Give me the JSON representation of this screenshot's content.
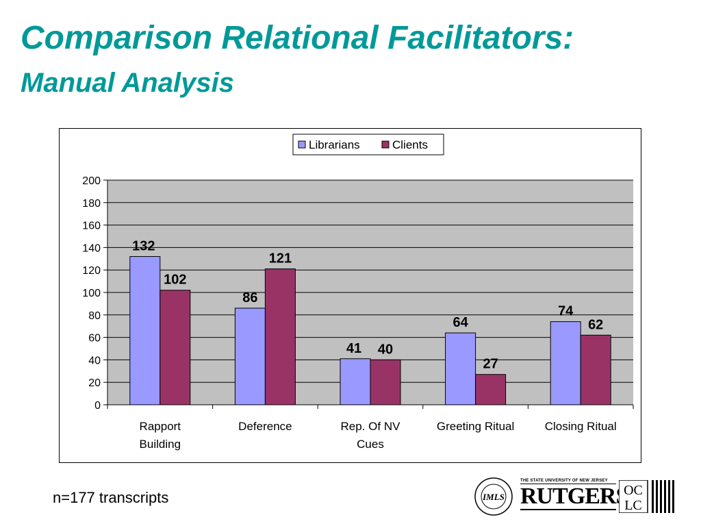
{
  "slide": {
    "title_line1": "Comparison Relational Facilitators:",
    "title_line2": "Manual Analysis",
    "footnote": "n=177 transcripts"
  },
  "logos": {
    "seal_text": "INSTITUTE of MUSEUM and LIBRARY SERVICES",
    "seal_monogram": "IMLS",
    "rutgers_small": "THE STATE UNIVERSITY OF NEW JERSEY",
    "rutgers_big": "RUTGERS",
    "oclc_top": "OC",
    "oclc_bottom": "LC"
  },
  "chart_data": {
    "type": "bar",
    "categories": [
      [
        "Rapport",
        "Building"
      ],
      [
        "Deference"
      ],
      [
        "Rep. Of NV",
        "Cues"
      ],
      [
        "Greeting Ritual"
      ],
      [
        "Closing Ritual"
      ]
    ],
    "series": [
      {
        "name": "Librarians",
        "values": [
          132,
          86,
          41,
          64,
          74
        ],
        "color": "#9999ff"
      },
      {
        "name": "Clients",
        "values": [
          102,
          121,
          40,
          27,
          62
        ],
        "color": "#993366"
      }
    ],
    "ylim": [
      0,
      200
    ],
    "yticks": [
      0,
      20,
      40,
      60,
      80,
      100,
      120,
      140,
      160,
      180,
      200
    ],
    "plot_background": "#c0c0c0",
    "grid": true,
    "legend_position": "top-center",
    "data_labels": true
  }
}
